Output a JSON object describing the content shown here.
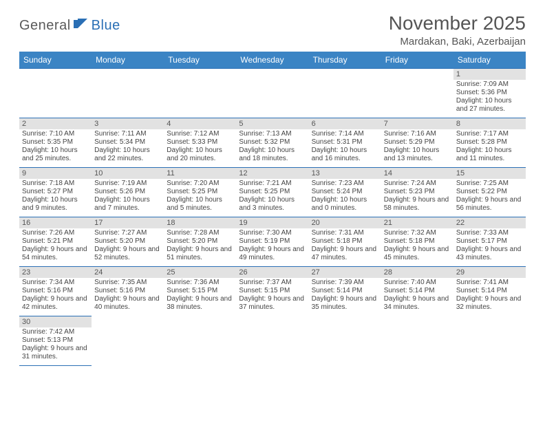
{
  "logo": {
    "part1": "General",
    "part2": "Blue"
  },
  "title": "November 2025",
  "location": "Mardakan, Baki, Azerbaijan",
  "colors": {
    "header_bg": "#3b84c4",
    "header_text": "#ffffff",
    "border": "#2a6fb5",
    "daynum_bg": "#e2e2e2",
    "text": "#444444",
    "logo_gray": "#5a5a5a",
    "logo_blue": "#2a6fb5"
  },
  "weekdays": [
    "Sunday",
    "Monday",
    "Tuesday",
    "Wednesday",
    "Thursday",
    "Friday",
    "Saturday"
  ],
  "weeks": [
    [
      null,
      null,
      null,
      null,
      null,
      null,
      {
        "n": "1",
        "sr": "Sunrise: 7:09 AM",
        "ss": "Sunset: 5:36 PM",
        "dl": "Daylight: 10 hours and 27 minutes."
      }
    ],
    [
      {
        "n": "2",
        "sr": "Sunrise: 7:10 AM",
        "ss": "Sunset: 5:35 PM",
        "dl": "Daylight: 10 hours and 25 minutes."
      },
      {
        "n": "3",
        "sr": "Sunrise: 7:11 AM",
        "ss": "Sunset: 5:34 PM",
        "dl": "Daylight: 10 hours and 22 minutes."
      },
      {
        "n": "4",
        "sr": "Sunrise: 7:12 AM",
        "ss": "Sunset: 5:33 PM",
        "dl": "Daylight: 10 hours and 20 minutes."
      },
      {
        "n": "5",
        "sr": "Sunrise: 7:13 AM",
        "ss": "Sunset: 5:32 PM",
        "dl": "Daylight: 10 hours and 18 minutes."
      },
      {
        "n": "6",
        "sr": "Sunrise: 7:14 AM",
        "ss": "Sunset: 5:31 PM",
        "dl": "Daylight: 10 hours and 16 minutes."
      },
      {
        "n": "7",
        "sr": "Sunrise: 7:16 AM",
        "ss": "Sunset: 5:29 PM",
        "dl": "Daylight: 10 hours and 13 minutes."
      },
      {
        "n": "8",
        "sr": "Sunrise: 7:17 AM",
        "ss": "Sunset: 5:28 PM",
        "dl": "Daylight: 10 hours and 11 minutes."
      }
    ],
    [
      {
        "n": "9",
        "sr": "Sunrise: 7:18 AM",
        "ss": "Sunset: 5:27 PM",
        "dl": "Daylight: 10 hours and 9 minutes."
      },
      {
        "n": "10",
        "sr": "Sunrise: 7:19 AM",
        "ss": "Sunset: 5:26 PM",
        "dl": "Daylight: 10 hours and 7 minutes."
      },
      {
        "n": "11",
        "sr": "Sunrise: 7:20 AM",
        "ss": "Sunset: 5:25 PM",
        "dl": "Daylight: 10 hours and 5 minutes."
      },
      {
        "n": "12",
        "sr": "Sunrise: 7:21 AM",
        "ss": "Sunset: 5:25 PM",
        "dl": "Daylight: 10 hours and 3 minutes."
      },
      {
        "n": "13",
        "sr": "Sunrise: 7:23 AM",
        "ss": "Sunset: 5:24 PM",
        "dl": "Daylight: 10 hours and 0 minutes."
      },
      {
        "n": "14",
        "sr": "Sunrise: 7:24 AM",
        "ss": "Sunset: 5:23 PM",
        "dl": "Daylight: 9 hours and 58 minutes."
      },
      {
        "n": "15",
        "sr": "Sunrise: 7:25 AM",
        "ss": "Sunset: 5:22 PM",
        "dl": "Daylight: 9 hours and 56 minutes."
      }
    ],
    [
      {
        "n": "16",
        "sr": "Sunrise: 7:26 AM",
        "ss": "Sunset: 5:21 PM",
        "dl": "Daylight: 9 hours and 54 minutes."
      },
      {
        "n": "17",
        "sr": "Sunrise: 7:27 AM",
        "ss": "Sunset: 5:20 PM",
        "dl": "Daylight: 9 hours and 52 minutes."
      },
      {
        "n": "18",
        "sr": "Sunrise: 7:28 AM",
        "ss": "Sunset: 5:20 PM",
        "dl": "Daylight: 9 hours and 51 minutes."
      },
      {
        "n": "19",
        "sr": "Sunrise: 7:30 AM",
        "ss": "Sunset: 5:19 PM",
        "dl": "Daylight: 9 hours and 49 minutes."
      },
      {
        "n": "20",
        "sr": "Sunrise: 7:31 AM",
        "ss": "Sunset: 5:18 PM",
        "dl": "Daylight: 9 hours and 47 minutes."
      },
      {
        "n": "21",
        "sr": "Sunrise: 7:32 AM",
        "ss": "Sunset: 5:18 PM",
        "dl": "Daylight: 9 hours and 45 minutes."
      },
      {
        "n": "22",
        "sr": "Sunrise: 7:33 AM",
        "ss": "Sunset: 5:17 PM",
        "dl": "Daylight: 9 hours and 43 minutes."
      }
    ],
    [
      {
        "n": "23",
        "sr": "Sunrise: 7:34 AM",
        "ss": "Sunset: 5:16 PM",
        "dl": "Daylight: 9 hours and 42 minutes."
      },
      {
        "n": "24",
        "sr": "Sunrise: 7:35 AM",
        "ss": "Sunset: 5:16 PM",
        "dl": "Daylight: 9 hours and 40 minutes."
      },
      {
        "n": "25",
        "sr": "Sunrise: 7:36 AM",
        "ss": "Sunset: 5:15 PM",
        "dl": "Daylight: 9 hours and 38 minutes."
      },
      {
        "n": "26",
        "sr": "Sunrise: 7:37 AM",
        "ss": "Sunset: 5:15 PM",
        "dl": "Daylight: 9 hours and 37 minutes."
      },
      {
        "n": "27",
        "sr": "Sunrise: 7:39 AM",
        "ss": "Sunset: 5:14 PM",
        "dl": "Daylight: 9 hours and 35 minutes."
      },
      {
        "n": "28",
        "sr": "Sunrise: 7:40 AM",
        "ss": "Sunset: 5:14 PM",
        "dl": "Daylight: 9 hours and 34 minutes."
      },
      {
        "n": "29",
        "sr": "Sunrise: 7:41 AM",
        "ss": "Sunset: 5:14 PM",
        "dl": "Daylight: 9 hours and 32 minutes."
      }
    ],
    [
      {
        "n": "30",
        "sr": "Sunrise: 7:42 AM",
        "ss": "Sunset: 5:13 PM",
        "dl": "Daylight: 9 hours and 31 minutes."
      },
      null,
      null,
      null,
      null,
      null,
      null
    ]
  ]
}
